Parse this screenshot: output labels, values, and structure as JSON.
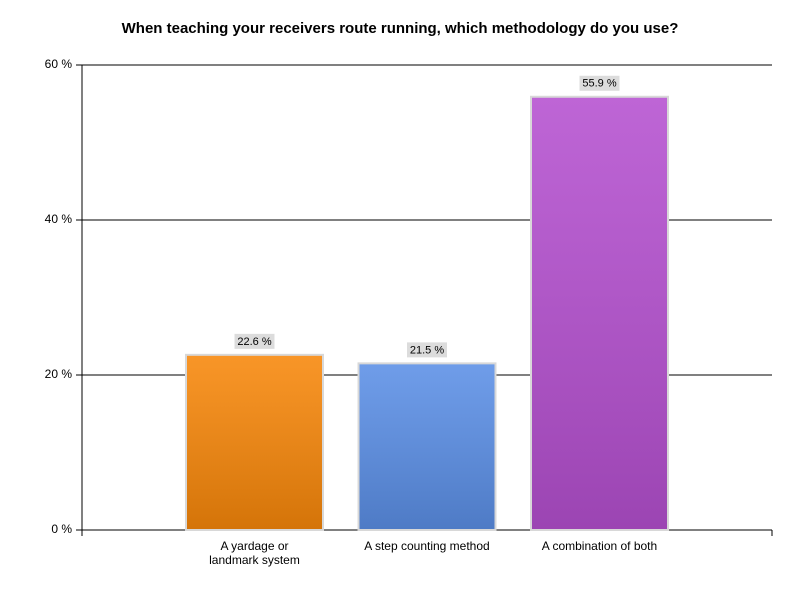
{
  "chart_data": {
    "type": "bar",
    "title": "When teaching your receivers route running, which methodology do you use?",
    "categories": [
      "A yardage or landmark system",
      "A step counting method",
      "A combination of both"
    ],
    "values": [
      22.6,
      21.5,
      55.9
    ],
    "value_labels": [
      "22.6 %",
      "21.5 %",
      "55.9 %"
    ],
    "colors": [
      "#f7870a",
      "#5b8fe6",
      "#b550d0"
    ],
    "ylim": [
      0,
      60
    ],
    "yticks": [
      {
        "value": 0,
        "label": "0 %"
      },
      {
        "value": 20,
        "label": "20 %"
      },
      {
        "value": 40,
        "label": "40 %"
      },
      {
        "value": 60,
        "label": "60 %"
      }
    ],
    "grid": true
  }
}
